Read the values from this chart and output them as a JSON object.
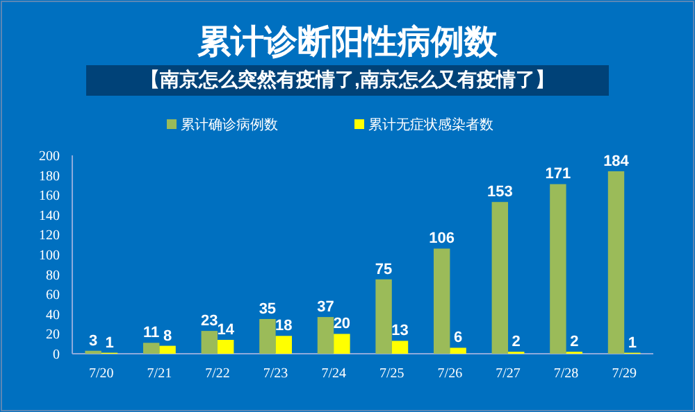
{
  "chart_data": {
    "type": "bar",
    "title": "累计诊断阳性病例数",
    "annotations": [
      "【南京怎么突然有疫情了,南京怎么又有疫情了】"
    ],
    "categories": [
      "7/20",
      "7/21",
      "7/22",
      "7/23",
      "7/24",
      "7/25",
      "7/26",
      "7/27",
      "7/28",
      "7/29"
    ],
    "series": [
      {
        "name": "累计确诊病例数",
        "color": "#9bbb59",
        "values": [
          3,
          11,
          23,
          35,
          37,
          75,
          106,
          153,
          171,
          184
        ]
      },
      {
        "name": "累计无症状感染者数",
        "color": "#ffff00",
        "values": [
          1,
          8,
          14,
          18,
          20,
          13,
          6,
          2,
          2,
          1
        ]
      }
    ],
    "ylim": [
      0,
      200
    ],
    "yticks": [
      0,
      20,
      40,
      60,
      80,
      100,
      120,
      140,
      160,
      180,
      200
    ],
    "data_labels": true,
    "legend": "top",
    "grid": false
  }
}
